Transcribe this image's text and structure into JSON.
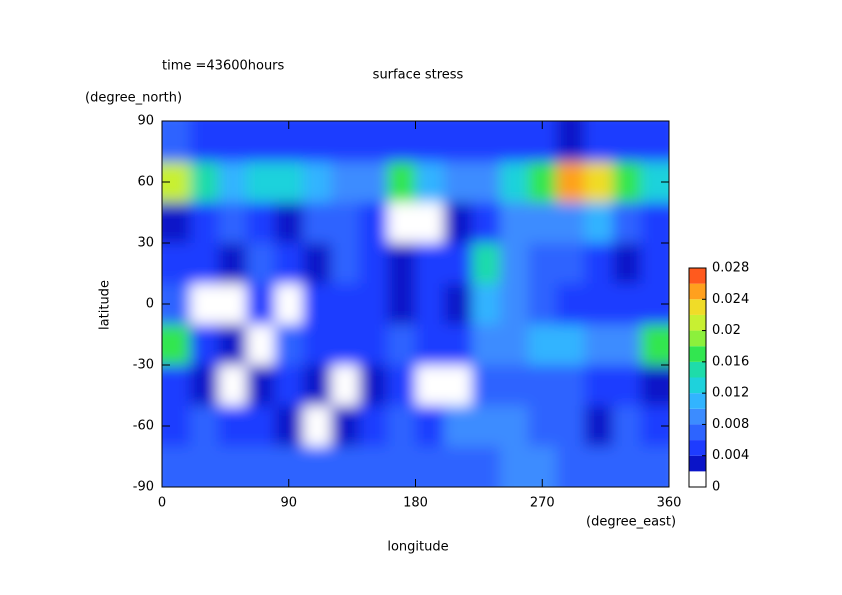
{
  "chart_data": {
    "type": "contour",
    "title": "surface stress",
    "subtitle": "time =43600hours",
    "x_label": "longitude",
    "x_unit": "(degree_east)",
    "y_label": "latitude",
    "y_unit": "(degree_north)",
    "xlim": [
      0,
      360
    ],
    "xticks": [
      0,
      90,
      180,
      270,
      360
    ],
    "ylim": [
      -90,
      90
    ],
    "yticks": [
      90,
      60,
      30,
      0,
      -30,
      -60,
      -90
    ],
    "x": [
      10,
      30,
      50,
      70,
      90,
      110,
      130,
      150,
      170,
      190,
      210,
      230,
      250,
      270,
      290,
      310,
      330,
      350
    ],
    "y": [
      80,
      60,
      40,
      20,
      0,
      -20,
      -40,
      -60,
      -80
    ],
    "z": [
      [
        0.006,
        0.005,
        0.004,
        0.004,
        0.004,
        0.004,
        0.004,
        0.005,
        0.005,
        0.004,
        0.004,
        0.004,
        0.005,
        0.005,
        0.003,
        0.004,
        0.005,
        0.005
      ],
      [
        0.02,
        0.014,
        0.01,
        0.012,
        0.012,
        0.01,
        0.008,
        0.008,
        0.016,
        0.01,
        0.008,
        0.008,
        0.012,
        0.016,
        0.024,
        0.022,
        0.016,
        0.012
      ],
      [
        0.002,
        0.004,
        0.006,
        0.004,
        0.002,
        0.006,
        0.006,
        0.004,
        0.001,
        0.001,
        0.002,
        0.004,
        0.008,
        0.008,
        0.008,
        0.01,
        0.006,
        0.004
      ],
      [
        0.004,
        0.004,
        0.002,
        0.006,
        0.004,
        0.002,
        0.006,
        0.004,
        0.002,
        0.004,
        0.004,
        0.014,
        0.008,
        0.006,
        0.006,
        0.004,
        0.002,
        0.004
      ],
      [
        0.006,
        0.001,
        0.001,
        0.004,
        0.001,
        0.004,
        0.004,
        0.004,
        0.002,
        0.004,
        0.002,
        0.01,
        0.008,
        0.006,
        0.004,
        0.004,
        0.004,
        0.004
      ],
      [
        0.016,
        0.004,
        0.002,
        0.001,
        0.006,
        0.004,
        0.004,
        0.004,
        0.006,
        0.004,
        0.004,
        0.008,
        0.008,
        0.01,
        0.01,
        0.008,
        0.008,
        0.016
      ],
      [
        0.004,
        0.002,
        0.001,
        0.002,
        0.004,
        0.002,
        0.001,
        0.002,
        0.004,
        0.001,
        0.001,
        0.006,
        0.006,
        0.006,
        0.006,
        0.004,
        0.004,
        0.002
      ],
      [
        0.004,
        0.006,
        0.004,
        0.004,
        0.002,
        0.001,
        0.002,
        0.004,
        0.006,
        0.004,
        0.008,
        0.008,
        0.008,
        0.006,
        0.006,
        0.002,
        0.006,
        0.004
      ],
      [
        0.006,
        0.006,
        0.006,
        0.006,
        0.006,
        0.006,
        0.006,
        0.006,
        0.006,
        0.006,
        0.006,
        0.006,
        0.008,
        0.008,
        0.006,
        0.006,
        0.006,
        0.006
      ]
    ],
    "levels": [
      0,
      0.002,
      0.004,
      0.006,
      0.008,
      0.01,
      0.012,
      0.014,
      0.016,
      0.018,
      0.02,
      0.022,
      0.024,
      0.026,
      0.028
    ],
    "colors": [
      "#ffffff",
      "#0a14c8",
      "#1e3cff",
      "#2d64ff",
      "#3c8cff",
      "#32b4ff",
      "#1ed2dc",
      "#1edcaa",
      "#32e650",
      "#8cf03c",
      "#c8f032",
      "#f0dc28",
      "#ffa01e",
      "#ff5a1e"
    ],
    "cbar_ticks": [
      0,
      0.004,
      0.008,
      0.012,
      0.016,
      0.02,
      0.024,
      0.028
    ]
  }
}
